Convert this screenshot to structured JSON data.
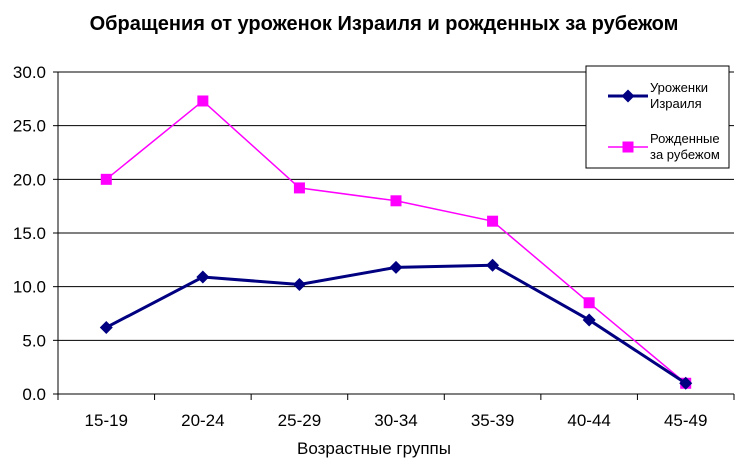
{
  "chart_data": {
    "type": "line",
    "title": "Обращения от уроженок Израиля и рожденных за рубежом",
    "xlabel": "Возрастные группы",
    "ylabel": "",
    "categories": [
      "15-19",
      "20-24",
      "25-29",
      "30-34",
      "35-39",
      "40-44",
      "45-49"
    ],
    "y_ticks": [
      "0.0",
      "5.0",
      "10.0",
      "15.0",
      "20.0",
      "25.0",
      "30.0"
    ],
    "ylim": [
      0,
      30
    ],
    "grid": true,
    "legend_position": "top-right",
    "series": [
      {
        "name": "Уроженки Израиля",
        "legend_lines": [
          "Уроженки",
          "Израиля"
        ],
        "color": "#000080",
        "marker": "diamond",
        "values": [
          6.2,
          10.9,
          10.2,
          11.8,
          12.0,
          6.9,
          1.0
        ]
      },
      {
        "name": "Рожденные за рубежом",
        "legend_lines": [
          "Рожденные",
          "за рубежом"
        ],
        "color": "#FF00FF",
        "marker": "square",
        "values": [
          20.0,
          27.3,
          19.2,
          18.0,
          16.1,
          8.5,
          1.0
        ]
      }
    ]
  }
}
